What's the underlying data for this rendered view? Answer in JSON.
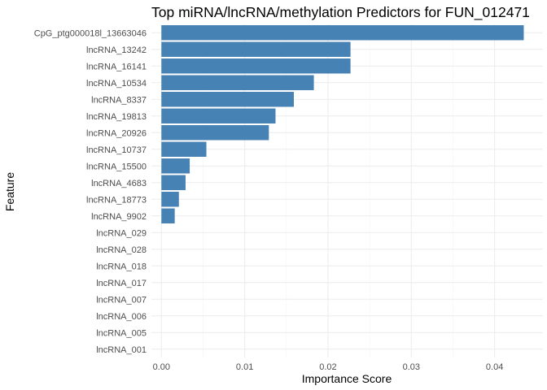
{
  "chart_data": {
    "type": "bar",
    "orientation": "horizontal",
    "title": "Top miRNA/lncRNA/methylation Predictors for FUN_012471",
    "xlabel": "Importance Score",
    "ylabel": "Feature",
    "categories": [
      "CpG_ptg000018l_13663046",
      "lncRNA_13242",
      "lncRNA_16141",
      "lncRNA_10534",
      "lncRNA_8337",
      "lncRNA_19813",
      "lncRNA_20926",
      "lncRNA_10737",
      "lncRNA_15500",
      "lncRNA_4683",
      "lncRNA_18773",
      "lncRNA_9902",
      "lncRNA_029",
      "lncRNA_028",
      "lncRNA_018",
      "lncRNA_017",
      "lncRNA_007",
      "lncRNA_006",
      "lncRNA_005",
      "lncRNA_001"
    ],
    "values": [
      0.0435,
      0.0227,
      0.0227,
      0.0183,
      0.0159,
      0.0137,
      0.0129,
      0.0054,
      0.0034,
      0.0029,
      0.0021,
      0.0016,
      0,
      0,
      0,
      0,
      0,
      0,
      0,
      0
    ],
    "xlim": [
      -0.0012,
      0.0458
    ],
    "xticks": [
      "0.00",
      "0.01",
      "0.02",
      "0.03",
      "0.04"
    ],
    "xtick_values": [
      0,
      0.01,
      0.02,
      0.03,
      0.04
    ],
    "grid": true,
    "bar_color": "#4682B4",
    "grid_major_color": "#EBEBEB",
    "grid_minor_color": "#F5F5F5",
    "legend": "none"
  }
}
